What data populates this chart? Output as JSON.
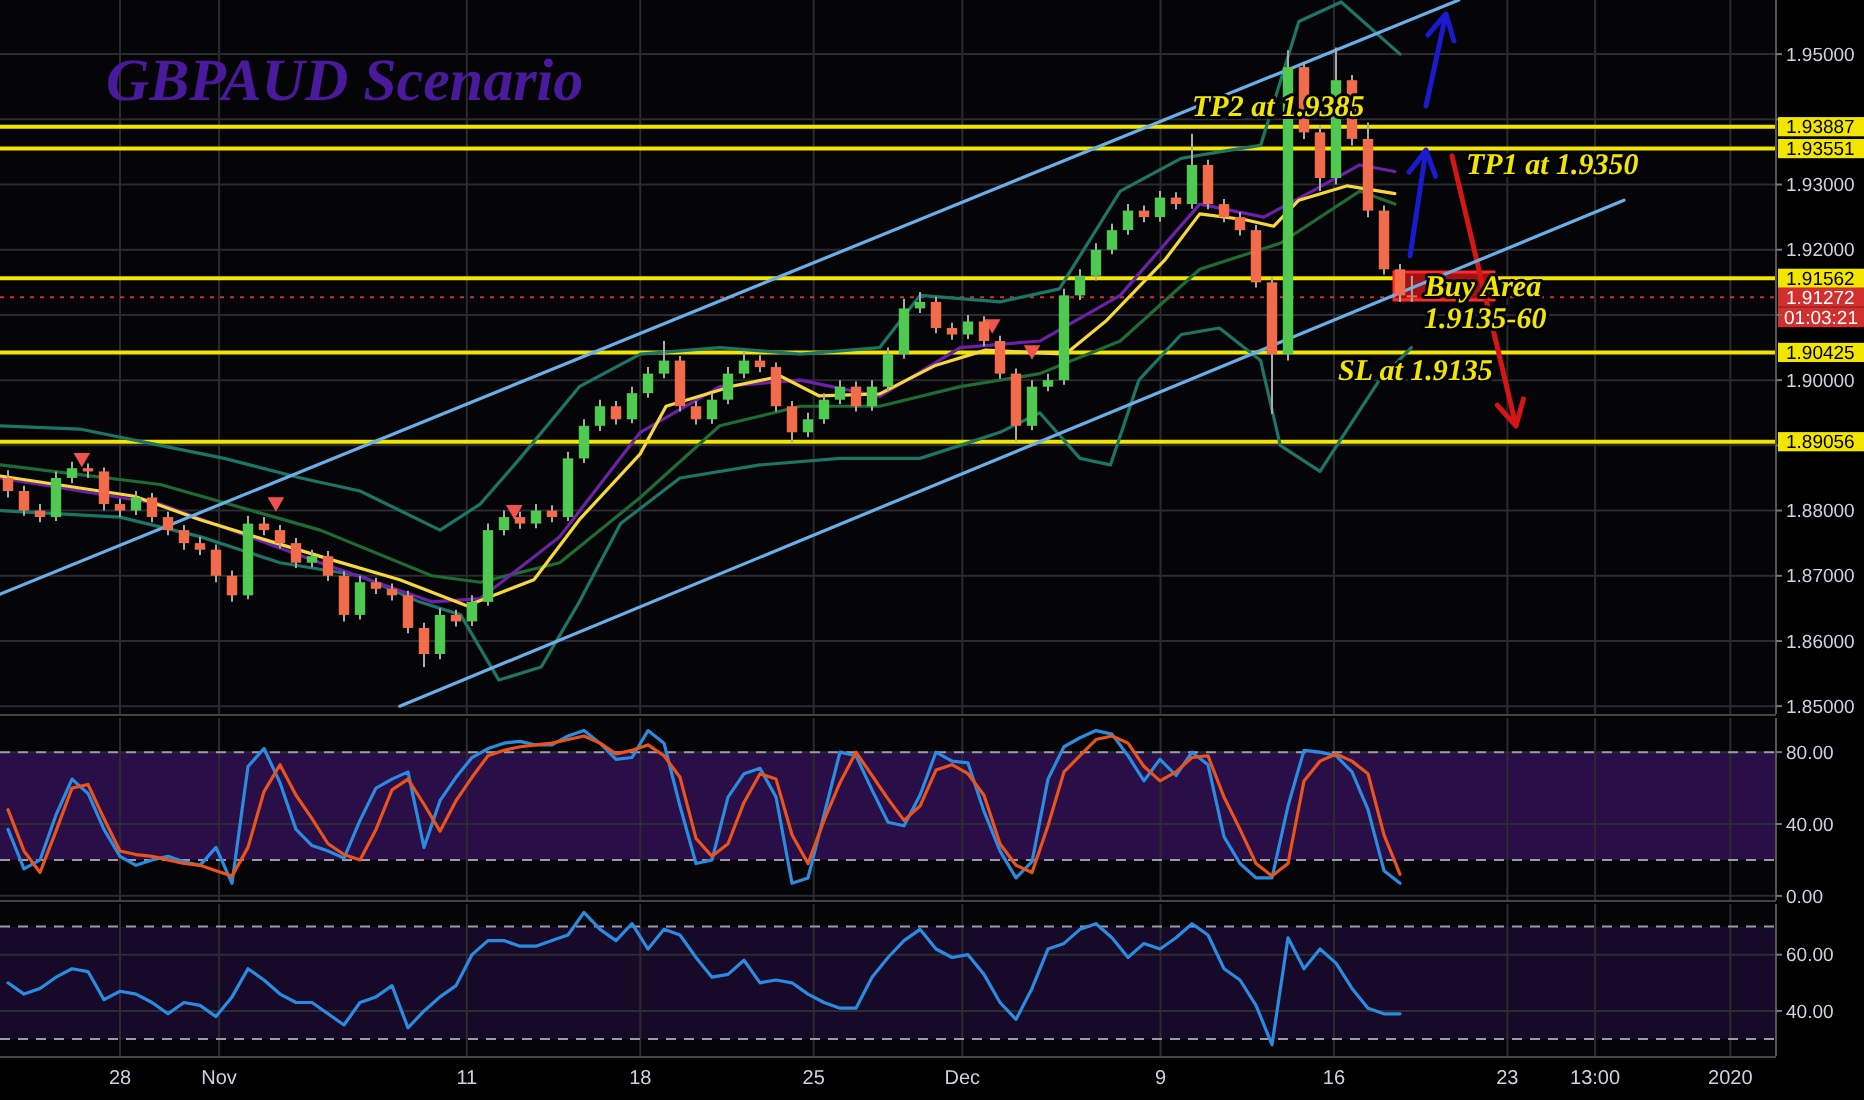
{
  "chart_data": [
    {
      "type": "candlestick",
      "title": "GBPAUD Scenario",
      "colors": [
        "#f26b4b",
        "#f26b4b",
        "#f26b4b",
        "#4fc94f",
        "#4fc94f",
        "#f26b4b",
        "#f26b4b",
        "#f26b4b",
        "#4fc94f",
        "#f26b4b",
        "#f26b4b",
        "#f26b4b",
        "#f26b4b",
        "#f26b4b",
        "#f26b4b",
        "#4fc94f",
        "#f26b4b",
        "#f26b4b",
        "#f26b4b",
        "#4fc94f",
        "#f26b4b",
        "#f26b4b",
        "#4fc94f",
        "#f26b4b",
        "#f26b4b",
        "#f26b4b",
        "#f26b4b",
        "#4fc94f",
        "#f26b4b",
        "#4fc94f",
        "#4fc94f",
        "#4fc94f",
        "#f26b4b",
        "#4fc94f",
        "#f26b4b",
        "#4fc94f",
        "#4fc94f",
        "#4fc94f",
        "#f26b4b",
        "#4fc94f",
        "#4fc94f",
        "#4fc94f",
        "#f26b4b",
        "#f26b4b",
        "#4fc94f",
        "#4fc94f",
        "#4fc94f",
        "#f26b4b",
        "#f26b4b",
        "#f26b4b",
        "#4fc94f",
        "#4fc94f",
        "#4fc94f",
        "#f26b4b",
        "#4fc94f",
        "#4fc94f",
        "#4fc94f",
        "#4fc94f",
        "#f26b4b",
        "#f26b4b",
        "#4fc94f",
        "#f26b4b",
        "#f26b4b",
        "#f26b4b",
        "#4fc94f",
        "#4fc94f",
        "#4fc94f",
        "#4fc94f",
        "#4fc94f",
        "#4fc94f",
        "#4fc94f",
        "#f26b4b",
        "#4fc94f",
        "#f26b4b",
        "#4fc94f",
        "#f26b4b",
        "#f26b4b",
        "#f26b4b",
        "#f26b4b",
        "#f26b4b",
        "#4fc94f",
        "#f26b4b",
        "#f26b4b",
        "#4fc94f",
        "#f26b4b",
        "#f26b4b",
        "#f26b4b",
        "#f26b4b",
        "#f26b4b"
      ],
      "x": [
        "2019-10-23T11:30",
        "2019-10-24T03:00",
        "2019-10-24T18:30",
        "2019-10-25T10:00",
        "2019-10-26T01:30",
        "2019-10-26T17:00",
        "2019-10-27T08:30",
        "2019-10-28T00:00",
        "2019-10-28T15:30",
        "2019-10-29T07:00",
        "2019-10-29T22:30",
        "2019-10-30T14:00",
        "2019-10-31T05:30",
        "2019-10-31T21:00",
        "2019-11-01T12:30",
        "2019-11-02T04:00",
        "2019-11-02T19:30",
        "2019-11-03T11:00",
        "2019-11-04T02:30",
        "2019-11-04T18:00",
        "2019-11-05T09:30",
        "2019-11-06T01:00",
        "2019-11-06T16:30",
        "2019-11-07T08:00",
        "2019-11-07T23:30",
        "2019-11-08T15:00",
        "2019-11-09T06:30",
        "2019-11-09T22:00",
        "2019-11-10T13:30",
        "2019-11-11T05:00",
        "2019-11-11T20:30",
        "2019-11-12T12:00",
        "2019-11-13T03:30",
        "2019-11-13T19:00",
        "2019-11-14T10:30",
        "2019-11-15T02:00",
        "2019-11-15T17:30",
        "2019-11-16T09:00",
        "2019-11-17T00:30",
        "2019-11-17T16:00",
        "2019-11-18T07:30",
        "2019-11-18T23:00",
        "2019-11-19T14:30",
        "2019-11-20T06:00",
        "2019-11-20T21:30",
        "2019-11-21T13:00",
        "2019-11-22T04:30",
        "2019-11-22T20:00",
        "2019-11-23T11:30",
        "2019-11-24T03:00",
        "2019-11-24T18:30",
        "2019-11-25T10:00",
        "2019-11-26T01:30",
        "2019-11-26T17:00",
        "2019-11-27T08:30",
        "2019-11-28T00:00",
        "2019-11-28T15:30",
        "2019-11-29T07:00",
        "2019-11-29T22:30",
        "2019-11-30T14:00",
        "2019-12-01T05:30",
        "2019-12-01T21:00",
        "2019-12-02T12:30",
        "2019-12-03T04:00",
        "2019-12-03T19:30",
        "2019-12-04T11:00",
        "2019-12-05T02:30",
        "2019-12-05T18:00",
        "2019-12-06T09:30",
        "2019-12-07T01:00",
        "2019-12-07T16:30",
        "2019-12-08T08:00",
        "2019-12-08T23:30",
        "2019-12-09T15:00",
        "2019-12-10T06:30",
        "2019-12-10T22:00",
        "2019-12-11T13:30",
        "2019-12-12T05:00",
        "2019-12-12T20:30",
        "2019-12-13T12:00",
        "2019-12-14T03:30",
        "2019-12-14T19:00",
        "2019-12-15T10:30",
        "2019-12-16T02:00",
        "2019-12-16T17:30",
        "2019-12-17T09:00",
        "2019-12-18T00:30",
        "2019-12-18T16:00",
        "2019-12-19T03:30"
      ],
      "ohlc": [
        [
          1.885,
          1.8862,
          1.882,
          1.883
        ],
        [
          1.883,
          1.8838,
          1.8792,
          1.88
        ],
        [
          1.88,
          1.881,
          1.8782,
          1.879
        ],
        [
          1.879,
          1.886,
          1.8784,
          1.885
        ],
        [
          1.885,
          1.8875,
          1.8842,
          1.8865
        ],
        [
          1.8865,
          1.8872,
          1.885,
          1.886
        ],
        [
          1.886,
          1.8866,
          1.88,
          1.881
        ],
        [
          1.881,
          1.8818,
          1.879,
          1.88
        ],
        [
          1.88,
          1.883,
          1.8793,
          1.882
        ],
        [
          1.882,
          1.8827,
          1.8782,
          1.879
        ],
        [
          1.879,
          1.8798,
          1.8762,
          1.877
        ],
        [
          1.877,
          1.8778,
          1.874,
          1.875
        ],
        [
          1.875,
          1.876,
          1.8732,
          1.874
        ],
        [
          1.874,
          1.8748,
          1.869,
          1.87
        ],
        [
          1.87,
          1.8708,
          1.866,
          1.867
        ],
        [
          1.867,
          1.8792,
          1.8664,
          1.878
        ],
        [
          1.878,
          1.879,
          1.8762,
          1.877
        ],
        [
          1.877,
          1.8778,
          1.8742,
          1.875
        ],
        [
          1.875,
          1.8758,
          1.8712,
          1.872
        ],
        [
          1.872,
          1.874,
          1.8713,
          1.873
        ],
        [
          1.873,
          1.8738,
          1.8692,
          1.87
        ],
        [
          1.87,
          1.8707,
          1.863,
          1.864
        ],
        [
          1.864,
          1.87,
          1.8633,
          1.869
        ],
        [
          1.869,
          1.8697,
          1.8672,
          1.868
        ],
        [
          1.868,
          1.8688,
          1.8662,
          1.867
        ],
        [
          1.867,
          1.8677,
          1.8612,
          1.862
        ],
        [
          1.862,
          1.8628,
          1.856,
          1.858
        ],
        [
          1.858,
          1.865,
          1.8572,
          1.864
        ],
        [
          1.864,
          1.8648,
          1.8622,
          1.863
        ],
        [
          1.863,
          1.867,
          1.8623,
          1.866
        ],
        [
          1.866,
          1.878,
          1.8654,
          1.877
        ],
        [
          1.877,
          1.88,
          1.8762,
          1.879
        ],
        [
          1.879,
          1.8798,
          1.8772,
          1.878
        ],
        [
          1.878,
          1.881,
          1.8773,
          1.88
        ],
        [
          1.88,
          1.8808,
          1.8782,
          1.879
        ],
        [
          1.879,
          1.889,
          1.8784,
          1.888
        ],
        [
          1.888,
          1.894,
          1.8873,
          1.893
        ],
        [
          1.893,
          1.897,
          1.8922,
          1.896
        ],
        [
          1.896,
          1.8968,
          1.8932,
          1.894
        ],
        [
          1.894,
          1.899,
          1.8934,
          1.898
        ],
        [
          1.898,
          1.902,
          1.8973,
          1.901
        ],
        [
          1.901,
          1.906,
          1.9003,
          1.903
        ],
        [
          1.903,
          1.9037,
          1.8952,
          1.896
        ],
        [
          1.896,
          1.8968,
          1.8932,
          1.894
        ],
        [
          1.894,
          1.898,
          1.8933,
          1.897
        ],
        [
          1.897,
          1.902,
          1.8963,
          1.901
        ],
        [
          1.901,
          1.9045,
          1.9003,
          1.903
        ],
        [
          1.903,
          1.9038,
          1.9012,
          1.902
        ],
        [
          1.902,
          1.9027,
          1.8952,
          1.896
        ],
        [
          1.896,
          1.8968,
          1.8905,
          1.892
        ],
        [
          1.892,
          1.895,
          1.8913,
          1.894
        ],
        [
          1.894,
          1.898,
          1.8933,
          1.897
        ],
        [
          1.897,
          1.9,
          1.8963,
          1.899
        ],
        [
          1.899,
          1.8998,
          1.8952,
          1.896
        ],
        [
          1.896,
          1.9,
          1.8953,
          1.899
        ],
        [
          1.899,
          1.905,
          1.8983,
          1.904
        ],
        [
          1.904,
          1.9125,
          1.9033,
          1.911
        ],
        [
          1.911,
          1.9135,
          1.9103,
          1.912
        ],
        [
          1.912,
          1.9128,
          1.9072,
          1.908
        ],
        [
          1.908,
          1.9088,
          1.9062,
          1.907
        ],
        [
          1.907,
          1.91,
          1.9063,
          1.909
        ],
        [
          1.909,
          1.9098,
          1.9052,
          1.906
        ],
        [
          1.906,
          1.9068,
          1.9002,
          1.901
        ],
        [
          1.901,
          1.9018,
          1.8906,
          1.893
        ],
        [
          1.893,
          1.9,
          1.8923,
          1.899
        ],
        [
          1.899,
          1.901,
          1.8983,
          1.9
        ],
        [
          1.9,
          1.914,
          1.8993,
          1.913
        ],
        [
          1.913,
          1.917,
          1.9123,
          1.916
        ],
        [
          1.916,
          1.921,
          1.9153,
          1.92
        ],
        [
          1.92,
          1.924,
          1.9193,
          1.923
        ],
        [
          1.923,
          1.927,
          1.9223,
          1.926
        ],
        [
          1.926,
          1.9268,
          1.9242,
          1.925
        ],
        [
          1.925,
          1.929,
          1.9243,
          1.928
        ],
        [
          1.928,
          1.9288,
          1.9262,
          1.927
        ],
        [
          1.927,
          1.9378,
          1.9263,
          1.933
        ],
        [
          1.933,
          1.9338,
          1.9262,
          1.927
        ],
        [
          1.927,
          1.9278,
          1.9242,
          1.925
        ],
        [
          1.925,
          1.9258,
          1.9222,
          1.923
        ],
        [
          1.923,
          1.9238,
          1.9142,
          1.915
        ],
        [
          1.915,
          1.9158,
          1.8948,
          1.904
        ],
        [
          1.904,
          1.9506,
          1.903,
          1.948
        ],
        [
          1.948,
          1.9488,
          1.937,
          1.938
        ],
        [
          1.938,
          1.939,
          1.929,
          1.931
        ],
        [
          1.931,
          1.951,
          1.93,
          1.946
        ],
        [
          1.946,
          1.9468,
          1.936,
          1.937
        ],
        [
          1.937,
          1.9395,
          1.925,
          1.926
        ],
        [
          1.926,
          1.9268,
          1.9162,
          1.917
        ],
        [
          1.917,
          1.9178,
          1.912,
          1.913
        ],
        [
          1.913,
          1.916,
          1.912,
          1.9127
        ]
      ],
      "series": [
        {
          "type": "line",
          "color": "#1c7566",
          "x": [
            "2019-10-23T04:00",
            "2019-10-26T09:00",
            "2019-10-29T15:00",
            "2019-11-01T05:00",
            "2019-11-04T07:00",
            "2019-11-06T16:30",
            "2019-11-09T22:00",
            "2019-11-11T13:00",
            "2019-11-13T03:30",
            "2019-11-15T13:00",
            "2019-11-18T00:00",
            "2019-11-21T05:00",
            "2019-11-24T11:00",
            "2019-11-27T16:00",
            "2019-11-29T07:00",
            "2019-12-02T12:30",
            "2019-12-04T22:00",
            "2019-12-07T09:00",
            "2019-12-09T20:00",
            "2019-12-11T09:00",
            "2019-12-13T01:00",
            "2019-12-14T14:00",
            "2019-12-16T07:00",
            "2019-12-18T16:00"
          ],
          "values": [
            1.893,
            1.8925,
            1.89,
            1.888,
            1.885,
            1.883,
            1.877,
            1.881,
            1.888,
            1.899,
            1.904,
            1.905,
            1.904,
            1.905,
            1.913,
            1.912,
            1.914,
            1.929,
            1.934,
            1.935,
            1.936,
            1.955,
            1.958,
            1.95
          ]
        },
        {
          "type": "line",
          "color": "#1c7566",
          "x": [
            "2019-10-23T04:00",
            "2019-10-28T00:00",
            "2019-10-31T05:30",
            "2019-11-03T11:00",
            "2019-11-06T16:30",
            "2019-11-09T02:00",
            "2019-11-10T18:00",
            "2019-11-12T07:00",
            "2019-11-14T00:00",
            "2019-11-15T13:00",
            "2019-11-17T05:00",
            "2019-11-19T14:30",
            "2019-11-22T20:00",
            "2019-11-26T01:30",
            "2019-11-29T07:00",
            "2019-11-30T22:00",
            "2019-12-02T12:30",
            "2019-12-04T03:00",
            "2019-12-05T18:00",
            "2019-12-06T23:30",
            "2019-12-08T03:00",
            "2019-12-09T20:00",
            "2019-12-11T09:00",
            "2019-12-13T01:00",
            "2019-12-13T20:00",
            "2019-12-15T10:30",
            "2019-12-17T20:00",
            "2019-12-19T03:00"
          ],
          "values": [
            1.88,
            1.879,
            1.876,
            1.872,
            1.87,
            1.866,
            1.864,
            1.854,
            1.856,
            1.866,
            1.878,
            1.885,
            1.887,
            1.888,
            1.888,
            1.89,
            1.892,
            1.895,
            1.888,
            1.887,
            1.9,
            1.907,
            1.908,
            1.903,
            1.89,
            1.886,
            1.9,
            1.905
          ]
        },
        {
          "type": "line",
          "color": "#1f6b35",
          "x": [
            "2019-10-23T04:00",
            "2019-10-29T15:00",
            "2019-11-05T02:00",
            "2019-11-09T14:00",
            "2019-11-11T13:00",
            "2019-11-14T18:00",
            "2019-11-18T00:00",
            "2019-11-21T05:00",
            "2019-11-24T11:00",
            "2019-11-27T16:00",
            "2019-11-30T22:00",
            "2019-12-04T03:00",
            "2019-12-07T09:00",
            "2019-12-10T14:00",
            "2019-12-13T20:00",
            "2019-12-17T01:00",
            "2019-12-18T11:00"
          ],
          "values": [
            1.887,
            1.884,
            1.877,
            1.87,
            1.869,
            1.872,
            1.882,
            1.893,
            1.896,
            1.896,
            1.899,
            1.901,
            1.906,
            1.917,
            1.921,
            1.929,
            1.927
          ]
        },
        {
          "type": "line",
          "color": "#6b21a8",
          "x": [
            "2019-10-23T04:00",
            "2019-10-29T15:00",
            "2019-11-05T02:00",
            "2019-11-09T14:00",
            "2019-11-11T13:00",
            "2019-11-14T18:00",
            "2019-11-18T00:00",
            "2019-11-21T05:00",
            "2019-11-24T11:00",
            "2019-11-27T16:00",
            "2019-11-30T22:00",
            "2019-12-04T03:00",
            "2019-12-07T09:00",
            "2019-12-10T14:00",
            "2019-12-13T04:00",
            "2019-12-15T03:00",
            "2019-12-17T01:00",
            "2019-12-18T11:00"
          ],
          "values": [
            1.885,
            1.881,
            1.872,
            1.866,
            1.8665,
            1.876,
            1.892,
            1.899,
            1.9,
            1.8975,
            1.905,
            1.906,
            1.913,
            1.927,
            1.925,
            1.929,
            1.933,
            1.932
          ]
        },
        {
          "type": "line",
          "color": "#f7d83a",
          "x": [
            "2019-10-23T04:00",
            "2019-10-28T14:00",
            "2019-10-31T05:30",
            "2019-11-02T21:00",
            "2019-11-05T14:00",
            "2019-11-08T07:00",
            "2019-11-11T00:00",
            "2019-11-13T17:00",
            "2019-11-15T13:00",
            "2019-11-18T00:00",
            "2019-11-19T01:00",
            "2019-11-21T18:00",
            "2019-11-23T16:00",
            "2019-11-25T05:00",
            "2019-11-27T16:00",
            "2019-11-29T21:00",
            "2019-12-01T22:30",
            "2019-12-05T04:00",
            "2019-12-06T20:00",
            "2019-12-09T04:00",
            "2019-12-10T14:00",
            "2019-12-12T10:00",
            "2019-12-13T13:30",
            "2019-12-14T14:00",
            "2019-12-16T13:00",
            "2019-12-18T11:00"
          ],
          "values": [
            1.8853,
            1.8822,
            1.8786,
            1.8755,
            1.8724,
            1.8694,
            1.8654,
            1.8694,
            1.8786,
            1.8887,
            1.896,
            1.8991,
            1.9006,
            1.8976,
            1.8979,
            1.9022,
            1.9046,
            1.904,
            1.9092,
            1.9184,
            1.9255,
            1.9246,
            1.9236,
            1.9276,
            1.9298,
            1.9286
          ]
        },
        {
          "type": "line",
          "color": "#6aaee8",
          "x": [
            "2019-10-23T04:00",
            "2019-12-21T01:00"
          ],
          "values": [
            1.8672,
            1.9583
          ]
        },
        {
          "type": "line",
          "color": "#6aaee8",
          "x": [
            "2019-11-08T07:00",
            "2019-12-27T17:00"
          ],
          "values": [
            1.85,
            1.9276
          ]
        },
        {
          "type": "scatter",
          "marker": "triangle",
          "color": "#ef5350",
          "x": [
            "2019-10-26T11:00",
            "2019-11-03T07:00",
            "2019-11-12T22:00",
            "2019-12-02T05:00",
            "2019-12-03T19:30"
          ],
          "values": [
            1.8881,
            1.8813,
            1.8801,
            1.9086,
            1.9046
          ]
        }
      ],
      "xlim": [
        "2019-10-23T03:45",
        "2020-01-02T20:15"
      ],
      "xticks": [
        {
          "value": "2019-10-28",
          "label": null
        },
        {
          "value": "2019-11-01",
          "label": null
        },
        {
          "value": "2019-11-11",
          "label": null
        },
        {
          "value": "2019-11-18",
          "label": null
        },
        {
          "value": "2019-11-25",
          "label": null
        },
        {
          "value": "2019-12-01",
          "label": null
        },
        {
          "value": "2019-12-09",
          "label": null
        },
        {
          "value": "2019-12-16",
          "label": null
        },
        {
          "value": "2019-12-23",
          "label": null
        },
        {
          "value": "2019-12-26T13:00",
          "label": null
        },
        {
          "value": "2020-01-01",
          "label": null
        }
      ],
      "ylim": [
        1.8488,
        1.9583
      ],
      "yticks": [
        {
          "value": 1.85,
          "label": "1.85000"
        },
        {
          "value": 1.86,
          "label": "1.86000"
        },
        {
          "value": 1.87,
          "label": "1.87000"
        },
        {
          "value": 1.88,
          "label": "1.88000"
        },
        {
          "value": 1.89,
          "label": null
        },
        {
          "value": 1.9,
          "label": "1.90000"
        },
        {
          "value": 1.91,
          "label": null
        },
        {
          "value": 1.92,
          "label": "1.92000"
        },
        {
          "value": 1.93,
          "label": "1.93000"
        },
        {
          "value": 1.94,
          "label": null
        },
        {
          "value": 1.95,
          "label": "1.95000"
        }
      ],
      "grid": true,
      "tick_labels": "y",
      "ref_lines": [
        {
          "axis": "y",
          "value": 1.93887,
          "label": "1.93887",
          "color": "#f2e600"
        },
        {
          "axis": "y",
          "value": 1.93551,
          "label": "1.93551",
          "color": "#f2e600"
        },
        {
          "axis": "y",
          "value": 1.91562,
          "label": "1.91562",
          "color": "#f2e600"
        },
        {
          "axis": "y",
          "value": 1.91272,
          "label": "1.91272",
          "color": "#d32f2f",
          "line_style": "dotted"
        },
        {
          "axis": "y",
          "value": 1.90425,
          "label": "1.90425",
          "color": "#f2e600"
        },
        {
          "axis": "y",
          "value": 1.89056,
          "label": "1.89056",
          "color": "#f2e600"
        }
      ],
      "annotations": [
        {
          "text": "TP2 at 1.9385",
          "x": "2019-12-10T06:30",
          "y": 1.9405
        },
        {
          "text": "Buy Area",
          "x": "2019-12-19T16:00",
          "y": 1.9129
        },
        "TP1 at 1.9350",
        "1.9135-60",
        "SL at 1.9135",
        "01:03:21"
      ]
    },
    {
      "type": "line",
      "x": [
        "2019-10-23T11:30",
        "2019-10-24T03:00",
        "2019-10-24T18:30",
        "2019-10-25T10:00",
        "2019-10-26T01:30",
        "2019-10-26T17:00",
        "2019-10-27T08:30",
        "2019-10-28T00:00",
        "2019-10-28T15:30",
        "2019-10-29T07:00",
        "2019-10-29T22:30",
        "2019-10-30T14:00",
        "2019-10-31T05:30",
        "2019-10-31T21:00",
        "2019-11-01T12:30",
        "2019-11-02T04:00",
        "2019-11-02T19:30",
        "2019-11-03T11:00",
        "2019-11-04T02:30",
        "2019-11-04T18:00",
        "2019-11-05T09:30",
        "2019-11-06T01:00",
        "2019-11-06T16:30",
        "2019-11-07T08:00",
        "2019-11-07T23:30",
        "2019-11-08T15:00",
        "2019-11-09T06:30",
        "2019-11-09T22:00",
        "2019-11-10T13:30",
        "2019-11-11T05:00",
        "2019-11-11T20:30",
        "2019-11-12T12:00",
        "2019-11-13T03:30",
        "2019-11-13T19:00",
        "2019-11-14T10:30",
        "2019-11-15T02:00",
        "2019-11-15T17:30",
        "2019-11-16T09:00",
        "2019-11-17T00:30",
        "2019-11-17T16:00",
        "2019-11-18T07:30",
        "2019-11-18T23:00",
        "2019-11-19T14:30",
        "2019-11-20T06:00",
        "2019-11-20T21:30",
        "2019-11-21T13:00",
        "2019-11-22T04:30",
        "2019-11-22T20:00",
        "2019-11-23T11:30",
        "2019-11-24T03:00",
        "2019-11-24T18:30",
        "2019-11-25T10:00",
        "2019-11-26T01:30",
        "2019-11-26T17:00",
        "2019-11-27T08:30",
        "2019-11-28T00:00",
        "2019-11-28T15:30",
        "2019-11-29T07:00",
        "2019-11-29T22:30",
        "2019-11-30T14:00",
        "2019-12-01T05:30",
        "2019-12-01T21:00",
        "2019-12-02T12:30",
        "2019-12-03T04:00",
        "2019-12-03T19:30",
        "2019-12-04T11:00",
        "2019-12-05T02:30",
        "2019-12-05T18:00",
        "2019-12-06T09:30",
        "2019-12-07T01:00",
        "2019-12-07T16:30",
        "2019-12-08T08:00",
        "2019-12-08T23:30",
        "2019-12-09T15:00",
        "2019-12-10T06:30",
        "2019-12-10T22:00",
        "2019-12-11T13:30",
        "2019-12-12T05:00",
        "2019-12-12T20:30",
        "2019-12-13T12:00",
        "2019-12-14T03:30",
        "2019-12-14T19:00",
        "2019-12-15T10:30",
        "2019-12-16T02:00",
        "2019-12-16T17:30",
        "2019-12-17T09:00",
        "2019-12-18T00:30",
        "2019-12-18T16:00"
      ],
      "series": [
        {
          "color": "#2a8ce0",
          "values": [
            37,
            15,
            20,
            45,
            65,
            57,
            37,
            22,
            17,
            20,
            22,
            19,
            17,
            27,
            7,
            72,
            82,
            63,
            37,
            28,
            25,
            21,
            42,
            60,
            65,
            69,
            27,
            53,
            66,
            77,
            82,
            85,
            86,
            84,
            84,
            89,
            92,
            85,
            76,
            77,
            92,
            85,
            50,
            18,
            20,
            55,
            68,
            71,
            55,
            7,
            10,
            45,
            80,
            78,
            59,
            41,
            39,
            56,
            80,
            75,
            74,
            47,
            25,
            10,
            19,
            65,
            83,
            88,
            92,
            90,
            78,
            64,
            76,
            67,
            80,
            73,
            33,
            18,
            10,
            10,
            50,
            81,
            80,
            78,
            69,
            48,
            14,
            7
          ]
        },
        {
          "color": "#e8541c",
          "values": [
            48,
            25,
            13,
            36,
            60,
            62,
            43,
            25,
            23,
            22,
            20,
            18,
            17,
            14,
            11,
            27,
            58,
            73,
            56,
            43,
            29,
            23,
            20,
            37,
            59,
            65,
            51,
            36,
            53,
            66,
            78,
            81,
            83,
            84,
            85,
            87,
            89,
            85,
            79,
            81,
            84,
            78,
            66,
            32,
            22,
            29,
            52,
            68,
            65,
            34,
            18,
            42,
            63,
            80,
            67,
            54,
            42,
            50,
            70,
            73,
            68,
            56,
            29,
            17,
            13,
            39,
            69,
            78,
            87,
            89,
            85,
            72,
            64,
            69,
            77,
            78,
            55,
            37,
            18,
            11,
            18,
            64,
            75,
            79,
            75,
            68,
            34,
            12
          ]
        }
      ],
      "xlim": [
        "2019-10-23T03:45",
        "2020-01-02T20:15"
      ],
      "xticks": [
        {
          "value": "2019-10-28",
          "label": null
        },
        {
          "value": "2019-11-01",
          "label": null
        },
        {
          "value": "2019-11-11",
          "label": null
        },
        {
          "value": "2019-11-18",
          "label": null
        },
        {
          "value": "2019-11-25",
          "label": null
        },
        {
          "value": "2019-12-01",
          "label": null
        },
        {
          "value": "2019-12-09",
          "label": null
        },
        {
          "value": "2019-12-16",
          "label": null
        },
        {
          "value": "2019-12-23",
          "label": null
        },
        {
          "value": "2019-12-26T13:00",
          "label": null
        },
        {
          "value": "2020-01-01",
          "label": null
        }
      ],
      "ylim": [
        -2.3,
        99
      ],
      "yticks": [
        {
          "value": 80,
          "label": "80.00"
        },
        {
          "value": 40,
          "label": "40.00"
        },
        {
          "value": 0,
          "label": "0.00"
        }
      ],
      "grid": true,
      "tick_labels": "y",
      "bands": [
        {
          "axis": "y",
          "from": 20,
          "to": 80,
          "color": "#2a0e47"
        }
      ],
      "ref_lines": [
        {
          "axis": "y",
          "value": 80,
          "color": "#9a9aa8",
          "line_style": "dashed"
        },
        {
          "axis": "y",
          "value": 20,
          "color": "#9a9aa8",
          "line_style": "dashed"
        }
      ]
    },
    {
      "type": "line",
      "x": [
        "2019-10-23T11:30",
        "2019-10-24T03:00",
        "2019-10-24T18:30",
        "2019-10-25T10:00",
        "2019-10-26T01:30",
        "2019-10-26T17:00",
        "2019-10-27T08:30",
        "2019-10-28T00:00",
        "2019-10-28T15:30",
        "2019-10-29T07:00",
        "2019-10-29T22:30",
        "2019-10-30T14:00",
        "2019-10-31T05:30",
        "2019-10-31T21:00",
        "2019-11-01T12:30",
        "2019-11-02T04:00",
        "2019-11-02T19:30",
        "2019-11-03T11:00",
        "2019-11-04T02:30",
        "2019-11-04T18:00",
        "2019-11-05T09:30",
        "2019-11-06T01:00",
        "2019-11-06T16:30",
        "2019-11-07T08:00",
        "2019-11-07T23:30",
        "2019-11-08T15:00",
        "2019-11-09T06:30",
        "2019-11-09T22:00",
        "2019-11-10T13:30",
        "2019-11-11T05:00",
        "2019-11-11T20:30",
        "2019-11-12T12:00",
        "2019-11-13T03:30",
        "2019-11-13T19:00",
        "2019-11-14T10:30",
        "2019-11-15T02:00",
        "2019-11-15T17:30",
        "2019-11-16T09:00",
        "2019-11-17T00:30",
        "2019-11-17T16:00",
        "2019-11-18T07:30",
        "2019-11-18T23:00",
        "2019-11-19T14:30",
        "2019-11-20T06:00",
        "2019-11-20T21:30",
        "2019-11-21T13:00",
        "2019-11-22T04:30",
        "2019-11-22T20:00",
        "2019-11-23T11:30",
        "2019-11-24T03:00",
        "2019-11-24T18:30",
        "2019-11-25T10:00",
        "2019-11-26T01:30",
        "2019-11-26T17:00",
        "2019-11-27T08:30",
        "2019-11-28T00:00",
        "2019-11-28T15:30",
        "2019-11-29T07:00",
        "2019-11-29T22:30",
        "2019-11-30T14:00",
        "2019-12-01T05:30",
        "2019-12-01T21:00",
        "2019-12-02T12:30",
        "2019-12-03T04:00",
        "2019-12-03T19:30",
        "2019-12-04T11:00",
        "2019-12-05T02:30",
        "2019-12-05T18:00",
        "2019-12-06T09:30",
        "2019-12-07T01:00",
        "2019-12-07T16:30",
        "2019-12-08T08:00",
        "2019-12-08T23:30",
        "2019-12-09T15:00",
        "2019-12-10T06:30",
        "2019-12-10T22:00",
        "2019-12-11T13:30",
        "2019-12-12T05:00",
        "2019-12-12T20:30",
        "2019-12-13T12:00",
        "2019-12-14T03:30",
        "2019-12-14T19:00",
        "2019-12-15T10:30",
        "2019-12-16T02:00",
        "2019-12-16T17:30",
        "2019-12-17T09:00",
        "2019-12-18T00:30",
        "2019-12-18T16:00"
      ],
      "series": [
        {
          "color": "#2a8ce0",
          "values": [
            50,
            46,
            48,
            52,
            55,
            54,
            44,
            47,
            46,
            43,
            39,
            43,
            42,
            38,
            45,
            55,
            51,
            46,
            43,
            43,
            39,
            35,
            43,
            45,
            49,
            34,
            40,
            45,
            49,
            60,
            65,
            65,
            63,
            63,
            65,
            67,
            75,
            69,
            65,
            71,
            62,
            69,
            67,
            59,
            52,
            53,
            58,
            50,
            51,
            50,
            46,
            43,
            41,
            41,
            52,
            59,
            65,
            69,
            62,
            59,
            60,
            53,
            43,
            37,
            48,
            62,
            64,
            69,
            71,
            66,
            59,
            64,
            62,
            66,
            71,
            67,
            55,
            51,
            42,
            28,
            66,
            55,
            62,
            57,
            48,
            41,
            39,
            39
          ]
        }
      ],
      "xlim": [
        "2019-10-23T03:45",
        "2020-01-02T20:15"
      ],
      "xticks": [
        {
          "value": "2019-10-28",
          "label": "28"
        },
        {
          "value": "2019-11-01",
          "label": "Nov"
        },
        {
          "value": "2019-11-11",
          "label": "11"
        },
        {
          "value": "2019-11-18",
          "label": "18"
        },
        {
          "value": "2019-11-25",
          "label": "25"
        },
        {
          "value": "2019-12-01",
          "label": "Dec"
        },
        {
          "value": "2019-12-09",
          "label": "9"
        },
        {
          "value": "2019-12-16",
          "label": "16"
        },
        {
          "value": "2019-12-23",
          "label": "23"
        },
        {
          "value": "2019-12-26T13:00",
          "label": "13:00"
        },
        {
          "value": "2020-01-01",
          "label": "2020"
        }
      ],
      "ylim": [
        24,
        78
      ],
      "yticks": [
        {
          "value": 60,
          "label": "60.00"
        },
        {
          "value": 40,
          "label": "40.00"
        }
      ],
      "grid": true,
      "bands": [
        {
          "axis": "y",
          "from": 30,
          "to": 70,
          "color": "#170a28"
        }
      ],
      "ref_lines": [
        {
          "axis": "y",
          "value": 70,
          "color": "#9a9aa8",
          "line_style": "dashed"
        },
        {
          "axis": "y",
          "value": 30,
          "color": "#9a9aa8",
          "line_style": "dashed"
        }
      ]
    }
  ]
}
